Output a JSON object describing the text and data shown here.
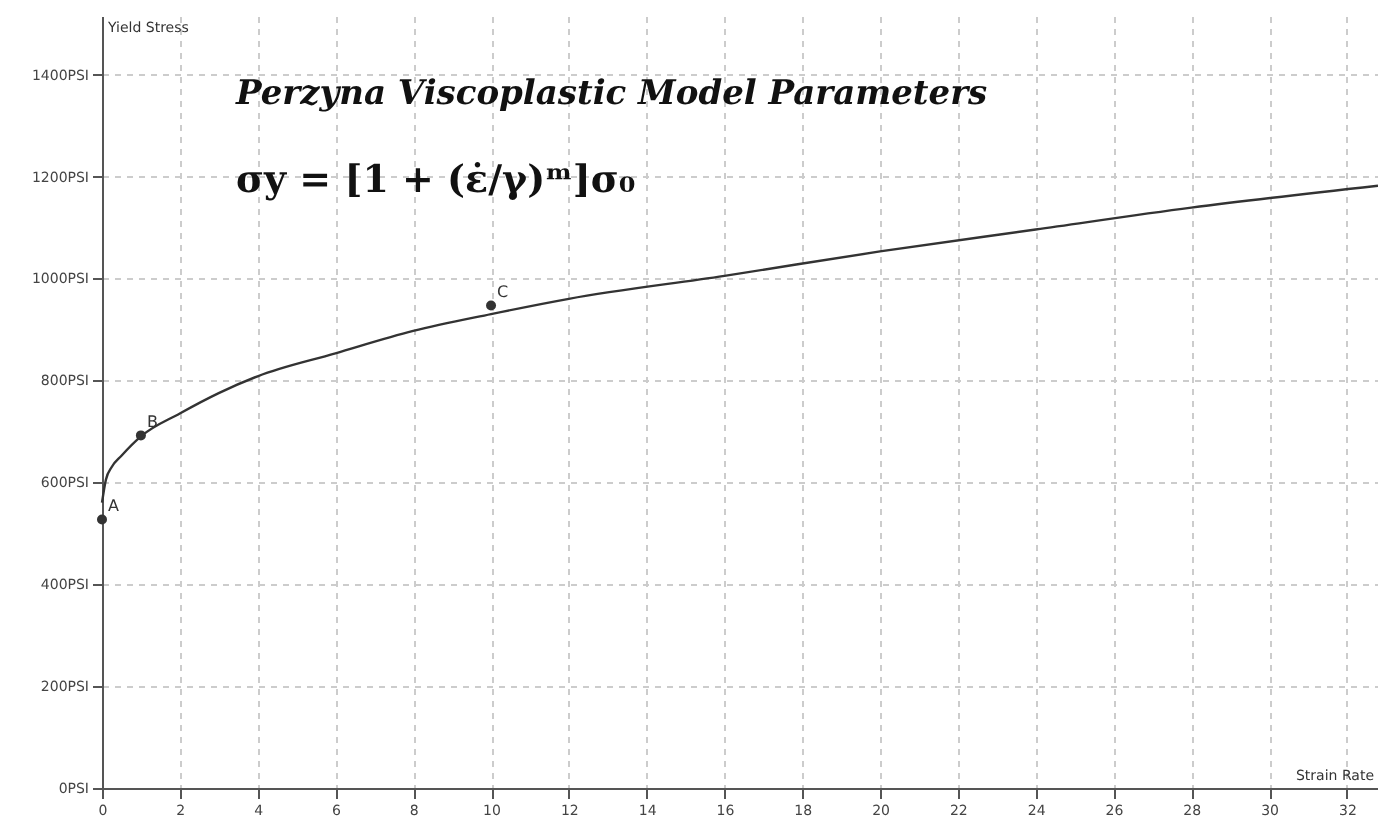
{
  "chart_data": {
    "type": "line",
    "title": "Perzyna Viscoplastic Model Parameters",
    "subtitle": "σy = [1 + (ε̇/γ)ᵐ]σ₀",
    "xlabel": "Strain Rate",
    "ylabel": "Yield Stress",
    "xlim": [
      0,
      32.8
    ],
    "ylim": [
      0,
      1515
    ],
    "xticks": [
      0,
      2,
      4,
      6,
      8,
      10,
      12,
      14,
      16,
      18,
      20,
      22,
      24,
      26,
      28,
      30,
      32
    ],
    "yticks": [
      {
        "value": 0,
        "label": "0PSI"
      },
      {
        "value": 200,
        "label": "200PSI"
      },
      {
        "value": 400,
        "label": "400PSI"
      },
      {
        "value": 600,
        "label": "600PSI"
      },
      {
        "value": 800,
        "label": "800PSI"
      },
      {
        "value": 1000,
        "label": "1000PSI"
      },
      {
        "value": 1200,
        "label": "1200PSI"
      },
      {
        "value": 1400,
        "label": "1400PSI"
      }
    ],
    "grid": true,
    "series": [
      {
        "type": "line",
        "color": "#333333",
        "marker": "none",
        "x": [
          0,
          0.1,
          0.25,
          0.5,
          1,
          2,
          3,
          4,
          6,
          8,
          10,
          12,
          16,
          20,
          24,
          28,
          32.8
        ],
        "values": [
          560,
          605,
          630,
          652,
          690,
          735,
          775,
          808,
          853,
          897,
          930,
          960,
          1005,
          1053,
          1096,
          1139,
          1182
        ]
      },
      {
        "type": "scatter",
        "color": "#333333",
        "marker": "circle",
        "x": [
          0,
          1,
          10
        ],
        "values": [
          527,
          692,
          947
        ]
      }
    ],
    "annotations": [
      {
        "text": "A",
        "x": 0,
        "y": 527
      },
      {
        "text": "B",
        "x": 1,
        "y": 692
      },
      {
        "text": "C",
        "x": 10,
        "y": 947
      }
    ]
  }
}
